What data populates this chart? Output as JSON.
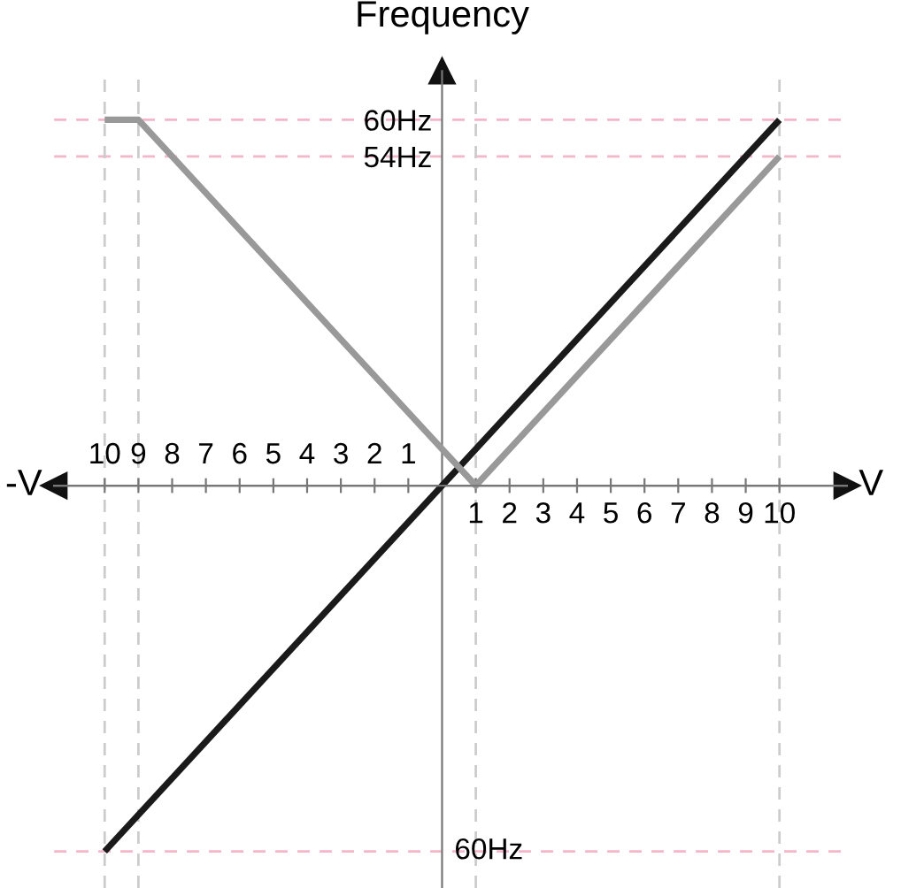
{
  "chart_data": {
    "type": "line",
    "ylabel": "Frequency",
    "xlabel": "V",
    "annotations": [
      "-V",
      {
        "text": "60Hz",
        "x": 0,
        "y": -60
      }
    ],
    "series": [
      {
        "color": "#1a1a1a",
        "x": [
          -10,
          10
        ],
        "values": [
          -60,
          60
        ]
      },
      {
        "color": "#999999",
        "x": [
          -10,
          -9,
          1,
          10
        ],
        "values": [
          60,
          60,
          0,
          54
        ]
      }
    ],
    "xlim": [
      -11.5,
      12
    ],
    "ylim": [
      -66,
      68
    ],
    "xticks": [
      1,
      2,
      3,
      4,
      5,
      6,
      7,
      8,
      9,
      10
    ],
    "x2lim": [
      11.5,
      -12
    ],
    "x2ticks": [
      10,
      9,
      8,
      7,
      6,
      5,
      4,
      3,
      2,
      1
    ],
    "yticks": [
      {
        "value": 60,
        "label": "60Hz"
      },
      {
        "value": 54,
        "label": "54Hz"
      }
    ],
    "ref_lines": [
      {
        "axis": "y",
        "value": 60,
        "color": "#f4b6c8",
        "line_style": "dashed"
      },
      {
        "axis": "y",
        "value": 54,
        "color": "#f4b6c8",
        "line_style": "dashed"
      },
      {
        "axis": "y",
        "value": -60,
        "color": "#f4b6c8",
        "line_style": "dashed"
      },
      {
        "axis": "x",
        "value": -10,
        "color": "#cccccc",
        "line_style": "dashed"
      },
      {
        "axis": "x",
        "value": -9,
        "color": "#cccccc",
        "line_style": "dashed"
      },
      {
        "axis": "x",
        "value": 1,
        "color": "#cccccc",
        "line_style": "dashed"
      },
      {
        "axis": "x",
        "value": 10,
        "color": "#cccccc",
        "line_style": "dashed"
      }
    ],
    "grid": false,
    "legend": false,
    "marker": "none",
    "line_style": "solid"
  }
}
